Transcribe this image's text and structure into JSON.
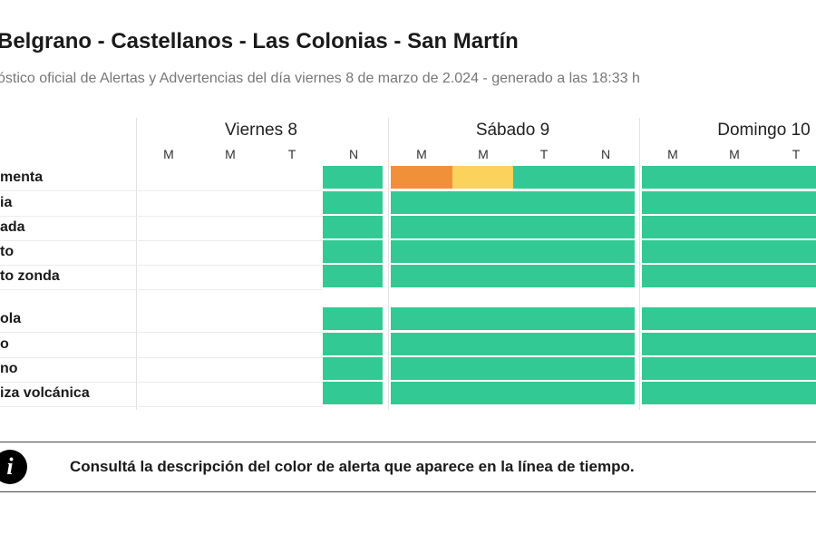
{
  "header": {
    "title": "Belgrano - Castellanos - Las Colonias - San Martín",
    "subtitle": "óstico oficial de Alertas y Advertencias del día viernes 8 de marzo de 2.024 - generado a las 18:33 h"
  },
  "days": [
    {
      "label": "Viernes 8",
      "periods": [
        "M",
        "M",
        "T",
        "N"
      ]
    },
    {
      "label": "Sábado 9",
      "periods": [
        "M",
        "M",
        "T",
        "N"
      ]
    },
    {
      "label": "Domingo 10",
      "periods": [
        "M",
        "M",
        "T"
      ]
    }
  ],
  "rows": [
    {
      "label": "menta",
      "group": 1
    },
    {
      "label": "ia",
      "group": 1
    },
    {
      "label": "ada",
      "group": 1
    },
    {
      "label": "to",
      "group": 1
    },
    {
      "label": "to zonda",
      "group": 1
    },
    {
      "label": "ola",
      "group": 2
    },
    {
      "label": "o",
      "group": 2
    },
    {
      "label": "no",
      "group": 2
    },
    {
      "label": "iza volcánica",
      "group": 2
    }
  ],
  "alert_colors": {
    "green": "#33c994",
    "orange": "#f0913a",
    "yellow": "#fbd25c",
    "none": "transparent"
  },
  "alert_levels": [
    [
      "none",
      "none",
      "none",
      "green",
      "orange",
      "yellow",
      "green",
      "green",
      "green",
      "green",
      "green"
    ],
    [
      "none",
      "none",
      "none",
      "green",
      "green",
      "green",
      "green",
      "green",
      "green",
      "green",
      "green"
    ],
    [
      "none",
      "none",
      "none",
      "green",
      "green",
      "green",
      "green",
      "green",
      "green",
      "green",
      "green"
    ],
    [
      "none",
      "none",
      "none",
      "green",
      "green",
      "green",
      "green",
      "green",
      "green",
      "green",
      "green"
    ],
    [
      "none",
      "none",
      "none",
      "green",
      "green",
      "green",
      "green",
      "green",
      "green",
      "green",
      "green"
    ],
    [
      "none",
      "none",
      "none",
      "green",
      "green",
      "green",
      "green",
      "green",
      "green",
      "green",
      "green"
    ],
    [
      "none",
      "none",
      "none",
      "green",
      "green",
      "green",
      "green",
      "green",
      "green",
      "green",
      "green"
    ],
    [
      "none",
      "none",
      "none",
      "green",
      "green",
      "green",
      "green",
      "green",
      "green",
      "green",
      "green"
    ],
    [
      "none",
      "none",
      "none",
      "green",
      "green",
      "green",
      "green",
      "green",
      "green",
      "green",
      "green"
    ]
  ],
  "info": {
    "icon": "info-icon",
    "icon_glyph": "i",
    "text": "Consultá la descripción del color de alerta que aparece en la línea de tiempo."
  }
}
